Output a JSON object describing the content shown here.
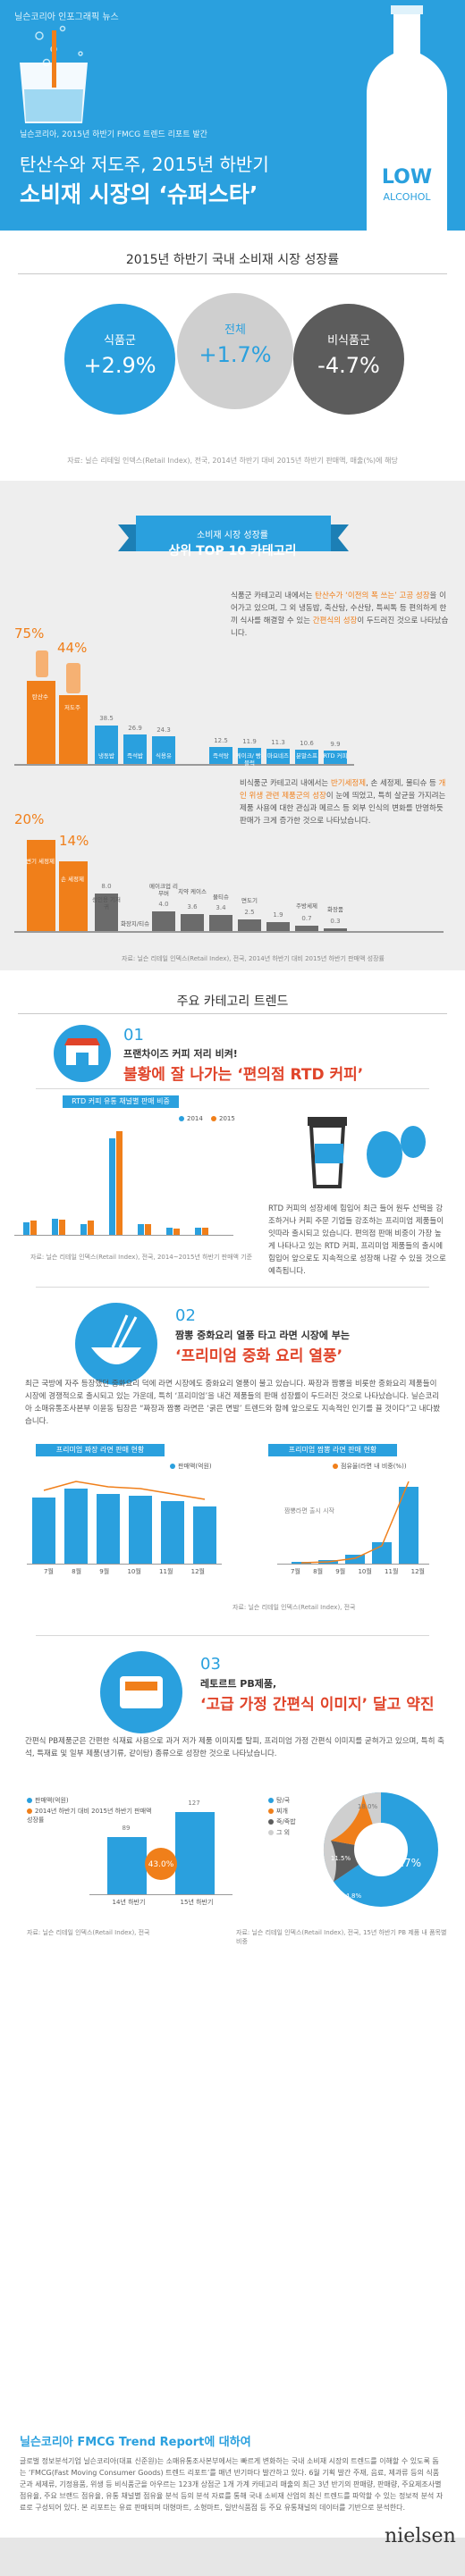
{
  "hero": {
    "tag": "닐슨코리아 인포그래픽 뉴스",
    "subtitle": "닐슨코리아, 2015년 하반기 FMCG 트렌드 리포트 발간",
    "title_line1": "탄산수와 저도주, 2015년 하반기",
    "title_line2": "소비재 시장의 ‘슈퍼스타’",
    "bottle_big": "LOW",
    "bottle_small": "ALCOHOL"
  },
  "growth": {
    "title": "2015년 하반기 국내 소비재 시장 성장률",
    "food_label": "식품군",
    "food_value": "+2.9%",
    "total_label": "전체",
    "total_value": "+1.7%",
    "nonfood_label": "비식품군",
    "nonfood_value": "-4.7%",
    "colors": {
      "food": "#2aa0de",
      "total": "#cfcfcf",
      "nonfood": "#5c5c5c"
    },
    "note": "자료: 닐슨 리테일 인덱스(Retail Index), 전국, 2014년 하반기 대비 2015년 하반기 판매액, 매출(%)에 해당"
  },
  "top10": {
    "ribbon_small": "소비재 시장 성장률",
    "ribbon_big": "상위 TOP 10 카테고리",
    "food_text_a": "식품군 카테고리 내에서는 ",
    "food_text_hl1": "탄산수가 ‘이전의 폭 쓰는’ 고공 성장",
    "food_text_b": "을 이어가고 있으며, 그 외 냉동밥, 축산탕, 수산탕, 특씨톡 등 편의하게 한 끼 식사를 해결할 수 있는 ",
    "food_text_hl2": "간편식의 성장",
    "food_text_c": "이 두드러진 것으로 나타났습니다.",
    "food_pcts": [
      "75%",
      "44%"
    ],
    "food_values": [
      "38.5",
      "26.9",
      "24.3",
      "12.5",
      "11.9",
      "11.3",
      "10.6",
      "9.9"
    ],
    "food_categories": [
      "탄산수",
      "저도주",
      "냉동밥",
      "즉석밥",
      "식용유",
      "즉석탕",
      "케이크/ 빵-블럭",
      "마요네즈",
      "분말스프",
      "RTD 커피"
    ],
    "nonfood_text_a": "비식품군 카테고리 내에서는 ",
    "nonfood_text_hl1": "반기세정제",
    "nonfood_text_b": ", 손 세정제, 물티슈 등 ",
    "nonfood_text_hl2": "개인 위생 관련 제품군의 성장",
    "nonfood_text_c": "이 눈에 띄었고, 특히 살균을 가지려는 제품 사용에 대한 관심과 메르스 등 외부 인식의 변화를 반영하듯 판매가 크게 증가한 것으로 나타났습니다.",
    "nonfood_pcts": [
      "20%",
      "14%"
    ],
    "nonfood_values": [
      "8.0",
      "4.0",
      "3.6",
      "3.4",
      "2.5",
      "1.9",
      "0.7",
      "0.3"
    ],
    "nonfood_categories": [
      "변기 세정제",
      "손 세정제",
      "성인용 기저귀",
      "화장지/티슈",
      "메이크업 리무버",
      "치약 케이스",
      "물티슈",
      "면도기",
      "주방세제",
      "화장품"
    ],
    "note": "자료: 닐슨 리테일 인덱스(Retail Index), 전국, 2014년 하반기 대비 2015년 하반기 판매액 성장률"
  },
  "trends": {
    "title": "주요 카테고리 트렌드",
    "t1": {
      "num": "01",
      "heading": "프랜차이즈 커피 저리 비켜!",
      "big": "불황에 잘 나가는 ‘편의점 RTD 커피’",
      "chart_title": "RTD 커피 유통 채널별 판매 비중",
      "legend": [
        "2014",
        "2015"
      ],
      "desc": "RTD 커피의 성장세에 힘입어 최근 들어 원두 선택을 강조하거나 커피 주문 기업들 강조하는 프리미엄 제품들이 잇따라 출시되고 있습니다. 편의점 판매 비중이 가장 높게 나타나고 있는 RTD 커피, 프리미엄 제품들의 출시에 힘입어 앞으로도 지속적으로 성장해 나갈 수 있을 것으로 예측됩니다.",
      "note": "자료: 닐슨 리테일 인덱스(Retail Index), 전국, 2014~2015년 하반기 판매액 기준"
    },
    "t2": {
      "num": "02",
      "heading": "짬뽕 중화요리 열풍 타고 라면 시장에 부는",
      "big": "‘프리미엄 중화 요리 열풍’",
      "desc": "최근 국방에 자주 등장했던 중화요리 덕에 라면 시장에도 중화요리 열풍이 불고 있습니다. 짜장과 짬뽕을 비롯한 중화요리 제품들이 시장에 경쟁적으로 출시되고 있는 가운데, 특히 ‘프리미엄’을 내건 제품들의 판매 성장률이 두드러진 것으로 나타났습니다. 닐슨코리아 소매유통조사본부 이윤동 팀장은 “짜장과 짬뽕 라면은 ‘굵은 면발’ 트렌드와 함께 앞으로도 지속적인 인기를 끌 것이다”고 내다봤습니다.",
      "left_title": "프리미엄 짜장 라면 판매 현황",
      "right_title": "프리미엄 짬뽕 라면 판매 현황",
      "left_legend": "판매액(억원)",
      "right_legend": "점유율(라면 내 비중(%))",
      "months": [
        "7월",
        "8월",
        "9월",
        "10월",
        "11월",
        "12월"
      ],
      "right_callout": "짬뽕라면 출시 시작",
      "note": "자료: 닐슨 리테일 인덱스(Retail Index), 전국"
    },
    "t3": {
      "num": "03",
      "heading": "레토르트 PB제품,",
      "big": "‘고급 가정 간편식 이미지’ 달고 약진",
      "desc": "간편식 PB제품군은 간편한 식재료 사용으로 과거 저가 제품 이미지를 탈피, 프리미엄 가정 간편식 이미지를 굳혀가고 있으며, 특히 축석, 특재료 및 일부 제품(냉기류, 같이탕) 종류으로 성장한 것으로 나타났습니다.",
      "legend_left": [
        "판매액(억원)",
        "2014년 하반기 대비 2015년 하반기 판매액 성장률"
      ],
      "bar_values": [
        "89",
        "127"
      ],
      "bar_labels": [
        "14년 하반기",
        "15년 하반기"
      ],
      "growth_pct": "43.0%",
      "legend_right": [
        "탕/국",
        "찌개",
        "죽/죽밥",
        "그 외"
      ],
      "pie_values": [
        "55.7%",
        "14.8%",
        "11.5%",
        "18.0%"
      ],
      "note_left": "자료: 닐슨 리테일 인덱스(Retail Index), 전국",
      "note_right": "자료: 닐슨 리테일 인덱스(Retail Index), 전국, 15년 하반기 PB 제품 내 품목별 비중"
    }
  },
  "footer": {
    "title": "닐슨코리아 FMCG Trend Report에 대하여",
    "text": "글로벌 정보분석기업 닐슨코리아(대표 신준원)는 소매유통조사본부에서는 빠르게 변화하는 국내 소비재 시장의 트렌드를 이해할 수 있도록 돕는 ‘FMCG(Fast Moving Consumer Goods) 트렌드 리포트’를 매년 반기마다 발간하고 있다. 6월 기획 발간 주재, 음료, 제과류 등의 식품군과 세제류, 기정용품, 위생 등 비식품군을 아우르는 123개 상점군 1개 가계 카테고리 매출의 최근 3년 반기의 판매량, 판매량, 주요제조사별 점유율, 주요 브랜드 점유율, 유통 채널별 점유율 분석 등의 분석 자료를 통해 국내 소비재 산업의 최신 트렌드를 파악할 수 있는 정보적 분석 자료로 구성되어 있다. 본 리포트는 유료 판매되며 대형마트, 소형마트, 일반식품점 등 주요 유통채널의 데이터를 기반으로 분석한다.",
    "brand": "nielsen"
  }
}
